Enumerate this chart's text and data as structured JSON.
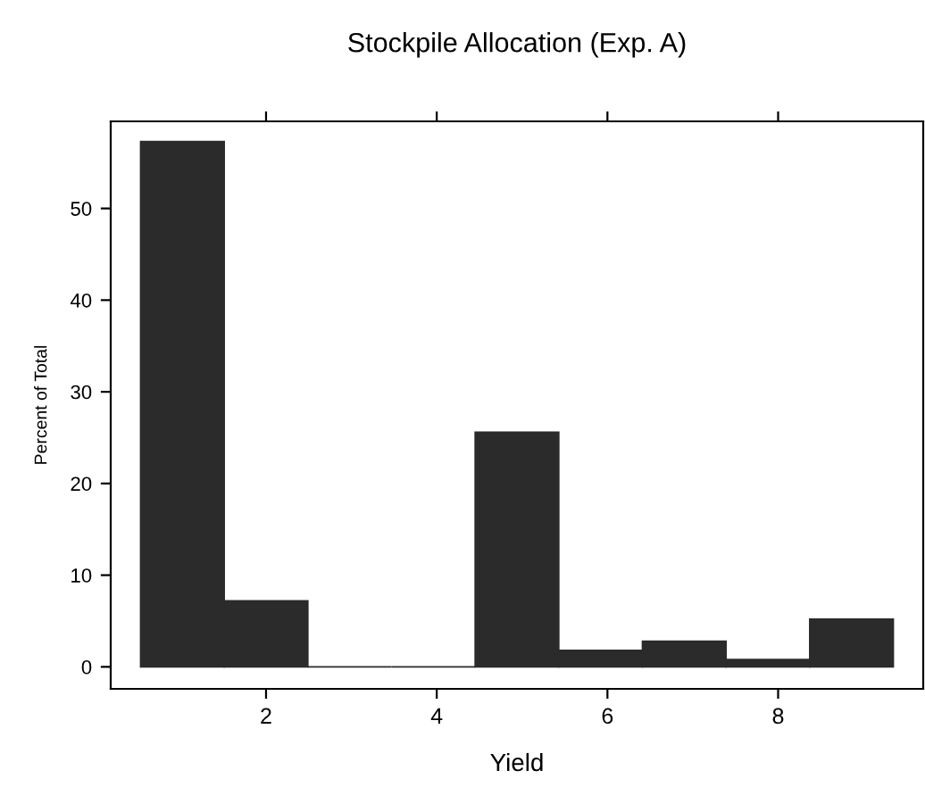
{
  "chart_data": {
    "type": "histogram",
    "title": "Stockpile Allocation (Exp. A)",
    "xlabel": "Yield",
    "ylabel": "Percent of Total",
    "bins": [
      0.53,
      1.51,
      2.49,
      3.47,
      4.45,
      5.43,
      6.41,
      7.39,
      8.37,
      9.35
    ],
    "values": [
      57.3,
      7.2,
      0,
      0,
      25.6,
      1.8,
      2.8,
      0.8,
      5.2
    ],
    "color": "#2b2b2b",
    "xlim": [
      0.18,
      9.7
    ],
    "ylim": [
      -2.4,
      59.5
    ],
    "xticks": [
      2,
      4,
      6,
      8
    ],
    "yticks": [
      0,
      10,
      20,
      30,
      40,
      50
    ],
    "grid": false
  }
}
